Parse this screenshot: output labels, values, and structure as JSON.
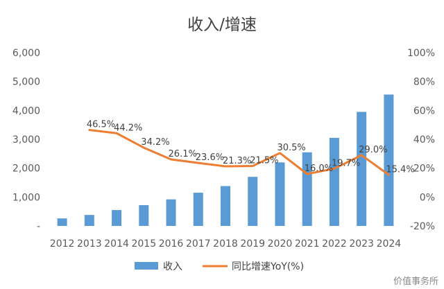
{
  "chart_data": {
    "type": "bar",
    "title": "收入/增速",
    "categories": [
      "2012",
      "2013",
      "2014",
      "2015",
      "2016",
      "2017",
      "2018",
      "2019",
      "2020",
      "2021",
      "2022",
      "2023",
      "2024"
    ],
    "series": [
      {
        "name": "收入",
        "type": "bar",
        "axis": "left",
        "color": "#5b9bd5",
        "values": [
          260,
          380,
          550,
          720,
          920,
          1150,
          1380,
          1700,
          2200,
          2550,
          3050,
          3950,
          4550
        ]
      },
      {
        "name": "同比增速YoY(%)",
        "type": "line",
        "axis": "right",
        "color": "#ed7d31",
        "values": [
          null,
          46.5,
          44.2,
          34.2,
          26.1,
          23.6,
          21.3,
          21.5,
          30.5,
          16.0,
          19.7,
          29.0,
          15.4
        ],
        "labels": [
          null,
          "46.5%",
          "44.2%",
          "34.2%",
          "26.1%",
          "23.6%",
          "21.3%",
          "21.5%",
          "30.5%",
          "16.0%",
          "19.7%",
          "29.0%",
          "15.4%"
        ]
      }
    ],
    "y_left": {
      "range": [
        0,
        6000
      ],
      "ticks": [
        0,
        1000,
        2000,
        3000,
        4000,
        5000,
        6000
      ],
      "tick_labels": [
        "-",
        "1,000",
        "2,000",
        "3,000",
        "4,000",
        "5,000",
        "6,000"
      ]
    },
    "y_right": {
      "range": [
        -20,
        100
      ],
      "ticks": [
        -20,
        0,
        20,
        40,
        60,
        80,
        100
      ],
      "tick_labels": [
        "-20%",
        "0%",
        "20%",
        "40%",
        "60%",
        "80%",
        "100%"
      ]
    },
    "grid": false,
    "legend": "bottom"
  },
  "watermark": "价值事务所"
}
